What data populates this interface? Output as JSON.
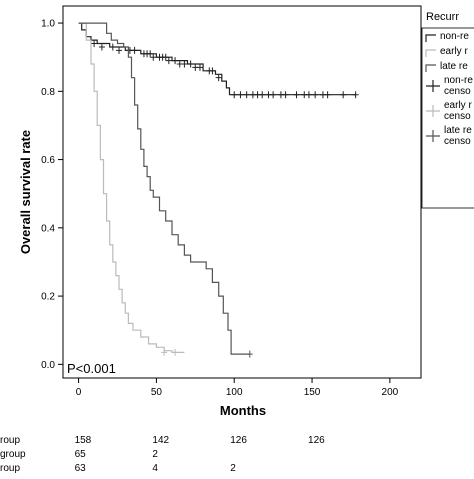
{
  "chart_data": {
    "type": "line",
    "subtype": "kaplan-meier",
    "title": "",
    "xlabel": "Months",
    "ylabel": "Overall survival rate",
    "xlim": [
      -10,
      220
    ],
    "ylim": [
      -0.04,
      1.05
    ],
    "xticks": [
      "0",
      "50",
      "100",
      "150",
      "200"
    ],
    "yticks": [
      "0.0",
      "0.2",
      "0.4",
      "0.6",
      "0.8",
      "1.0"
    ],
    "grid": false,
    "legend_position": "right (cropped)",
    "legend_title": "Recurr",
    "legend": [
      {
        "label": "non-re",
        "style": "line",
        "color": "#222222"
      },
      {
        "label": "early r",
        "style": "line",
        "color": "#bbbbbb"
      },
      {
        "label": "late re",
        "style": "line",
        "color": "#555555"
      },
      {
        "label": "non-re",
        "label2": "censo",
        "style": "censor",
        "color": "#222222"
      },
      {
        "label": "early r",
        "label2": "censo",
        "style": "censor",
        "color": "#bbbbbb"
      },
      {
        "label": "late re",
        "label2": "censo",
        "style": "censor",
        "color": "#555555"
      }
    ],
    "annotation": "P<0.001",
    "series": [
      {
        "key": "nonrec",
        "color": "#222222",
        "points": [
          [
            0,
            1.0
          ],
          [
            2,
            0.98
          ],
          [
            5,
            0.96
          ],
          [
            8,
            0.95
          ],
          [
            12,
            0.94
          ],
          [
            20,
            0.93
          ],
          [
            30,
            0.92
          ],
          [
            40,
            0.91
          ],
          [
            50,
            0.9
          ],
          [
            60,
            0.89
          ],
          [
            70,
            0.88
          ],
          [
            80,
            0.86
          ],
          [
            88,
            0.85
          ],
          [
            92,
            0.83
          ],
          [
            95,
            0.81
          ],
          [
            97,
            0.79
          ],
          [
            120,
            0.79
          ],
          [
            150,
            0.79
          ],
          [
            178,
            0.79
          ]
        ],
        "censors": [
          [
            10,
            0.94
          ],
          [
            15,
            0.93
          ],
          [
            22,
            0.93
          ],
          [
            26,
            0.92
          ],
          [
            33,
            0.92
          ],
          [
            36,
            0.92
          ],
          [
            42,
            0.91
          ],
          [
            44,
            0.91
          ],
          [
            46,
            0.91
          ],
          [
            48,
            0.9
          ],
          [
            52,
            0.9
          ],
          [
            54,
            0.9
          ],
          [
            56,
            0.9
          ],
          [
            58,
            0.89
          ],
          [
            62,
            0.89
          ],
          [
            65,
            0.88
          ],
          [
            68,
            0.88
          ],
          [
            72,
            0.88
          ],
          [
            75,
            0.87
          ],
          [
            78,
            0.87
          ],
          [
            84,
            0.86
          ],
          [
            86,
            0.86
          ],
          [
            90,
            0.84
          ],
          [
            100,
            0.79
          ],
          [
            104,
            0.79
          ],
          [
            108,
            0.79
          ],
          [
            112,
            0.79
          ],
          [
            115,
            0.79
          ],
          [
            118,
            0.79
          ],
          [
            122,
            0.79
          ],
          [
            125,
            0.79
          ],
          [
            130,
            0.79
          ],
          [
            133,
            0.79
          ],
          [
            140,
            0.79
          ],
          [
            145,
            0.79
          ],
          [
            148,
            0.79
          ],
          [
            152,
            0.79
          ],
          [
            157,
            0.79
          ],
          [
            160,
            0.79
          ],
          [
            170,
            0.79
          ],
          [
            178,
            0.79
          ]
        ]
      },
      {
        "key": "early",
        "color": "#bbbbbb",
        "points": [
          [
            0,
            1.0
          ],
          [
            5,
            0.95
          ],
          [
            8,
            0.88
          ],
          [
            10,
            0.8
          ],
          [
            12,
            0.7
          ],
          [
            14,
            0.6
          ],
          [
            16,
            0.5
          ],
          [
            18,
            0.42
          ],
          [
            20,
            0.35
          ],
          [
            22,
            0.3
          ],
          [
            24,
            0.26
          ],
          [
            26,
            0.22
          ],
          [
            28,
            0.18
          ],
          [
            30,
            0.15
          ],
          [
            32,
            0.12
          ],
          [
            35,
            0.1
          ],
          [
            40,
            0.08
          ],
          [
            45,
            0.06
          ],
          [
            50,
            0.05
          ],
          [
            55,
            0.04
          ],
          [
            60,
            0.035
          ],
          [
            68,
            0.035
          ]
        ],
        "censors": [
          [
            55,
            0.035
          ],
          [
            62,
            0.035
          ]
        ]
      },
      {
        "key": "late",
        "color": "#555555",
        "points": [
          [
            0,
            1.0
          ],
          [
            16,
            1.0
          ],
          [
            18,
            0.97
          ],
          [
            21,
            0.95
          ],
          [
            25,
            0.94
          ],
          [
            29,
            0.93
          ],
          [
            32,
            0.9
          ],
          [
            34,
            0.84
          ],
          [
            36,
            0.76
          ],
          [
            38,
            0.69
          ],
          [
            40,
            0.63
          ],
          [
            42,
            0.58
          ],
          [
            44,
            0.55
          ],
          [
            46,
            0.51
          ],
          [
            48,
            0.49
          ],
          [
            52,
            0.45
          ],
          [
            56,
            0.42
          ],
          [
            60,
            0.38
          ],
          [
            64,
            0.35
          ],
          [
            68,
            0.32
          ],
          [
            72,
            0.3
          ],
          [
            78,
            0.3
          ],
          [
            82,
            0.28
          ],
          [
            86,
            0.24
          ],
          [
            90,
            0.2
          ],
          [
            93,
            0.15
          ],
          [
            96,
            0.1
          ],
          [
            98,
            0.03
          ],
          [
            106,
            0.03
          ],
          [
            110,
            0.03
          ]
        ],
        "censors": [
          [
            110,
            0.03
          ]
        ]
      }
    ]
  },
  "risk_table": {
    "rows": [
      {
        "label": "roup",
        "values": [
          "158",
          "142",
          "126",
          "126"
        ]
      },
      {
        "label": "group",
        "values": [
          "65",
          "2",
          "",
          ""
        ]
      },
      {
        "label": "roup",
        "values": [
          "63",
          "4",
          "2",
          ""
        ]
      }
    ],
    "columns_at_months": [
      0,
      50,
      100,
      150
    ]
  }
}
